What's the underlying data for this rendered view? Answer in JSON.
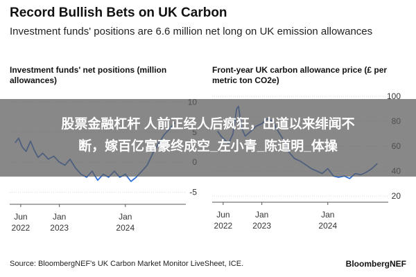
{
  "header": {
    "title": "Record Bullish Bets on UK Carbon",
    "subtitle": "Investment funds' positions are 6.6 million net long on UK emission allowances"
  },
  "chart_data": [
    {
      "type": "line",
      "title": "Investment funds' net positions (million allowances)",
      "ylim": [
        -7,
        12
      ],
      "yticks": [
        10,
        5,
        0,
        -5
      ],
      "xlim": [
        "2022-04-01",
        "2024-10-31"
      ],
      "xticks": [
        {
          "x": "2022-06-01",
          "line1": "Jun",
          "line2": "2022"
        },
        {
          "x": "2023-01-01",
          "line1": "Jan",
          "line2": "2023"
        },
        {
          "x": "2024-01-01",
          "line1": "Jan",
          "line2": "2024"
        }
      ],
      "series": [
        {
          "color": "#2f6fdc",
          "points": [
            [
              "2022-05-01",
              3.2
            ],
            [
              "2022-05-20",
              4.0
            ],
            [
              "2022-06-10",
              2.5
            ],
            [
              "2022-07-01",
              1.8
            ],
            [
              "2022-07-25",
              3.5
            ],
            [
              "2022-08-15",
              2.0
            ],
            [
              "2022-09-05",
              0.8
            ],
            [
              "2022-10-01",
              1.5
            ],
            [
              "2022-11-01",
              0.5
            ],
            [
              "2022-12-01",
              1.0
            ],
            [
              "2023-01-01",
              0.0
            ],
            [
              "2023-02-01",
              -0.5
            ],
            [
              "2023-03-01",
              0.5
            ],
            [
              "2023-04-01",
              -1.0
            ],
            [
              "2023-05-01",
              -2.0
            ],
            [
              "2023-06-01",
              -2.5
            ],
            [
              "2023-07-01",
              -1.5
            ],
            [
              "2023-08-01",
              -3.0
            ],
            [
              "2023-09-01",
              -2.0
            ],
            [
              "2023-10-01",
              -2.5
            ],
            [
              "2023-11-01",
              -1.5
            ],
            [
              "2023-12-01",
              -2.5
            ],
            [
              "2024-01-01",
              -2.0
            ],
            [
              "2024-02-01",
              -3.2
            ],
            [
              "2024-03-01",
              -2.5
            ],
            [
              "2024-04-01",
              -1.5
            ],
            [
              "2024-05-01",
              -0.5
            ],
            [
              "2024-06-01",
              1.5
            ],
            [
              "2024-07-01",
              3.0
            ],
            [
              "2024-08-01",
              4.5
            ],
            [
              "2024-09-01",
              5.5
            ],
            [
              "2024-10-01",
              6.6
            ]
          ]
        }
      ]
    },
    {
      "type": "line",
      "title": "Front-year UK carbon allowance price (£ per metric ton CO2e)",
      "ylim": [
        15,
        105
      ],
      "yticks": [
        100,
        80,
        60,
        40,
        20
      ],
      "xlim": [
        "2022-04-01",
        "2024-10-31"
      ],
      "xticks": [
        {
          "x": "2022-06-01",
          "line1": "Jun",
          "line2": "2022"
        },
        {
          "x": "2023-01-01",
          "line1": "Jan",
          "line2": "2023"
        },
        {
          "x": "2024-01-01",
          "line1": "Jan",
          "line2": "2024"
        }
      ],
      "series": [
        {
          "color": "#2f6fdc",
          "points": [
            [
              "2022-05-01",
              72
            ],
            [
              "2022-05-20",
              68
            ],
            [
              "2022-06-10",
              65
            ],
            [
              "2022-07-01",
              62
            ],
            [
              "2022-07-25",
              70
            ],
            [
              "2022-08-15",
              90
            ],
            [
              "2022-08-25",
              92
            ],
            [
              "2022-09-10",
              75
            ],
            [
              "2022-10-01",
              68
            ],
            [
              "2022-11-01",
              72
            ],
            [
              "2022-12-01",
              76
            ],
            [
              "2023-01-01",
              78
            ],
            [
              "2023-02-01",
              82
            ],
            [
              "2023-03-01",
              80
            ],
            [
              "2023-04-01",
              72
            ],
            [
              "2023-05-01",
              65
            ],
            [
              "2023-06-01",
              55
            ],
            [
              "2023-07-01",
              50
            ],
            [
              "2023-08-01",
              48
            ],
            [
              "2023-09-01",
              45
            ],
            [
              "2023-10-01",
              42
            ],
            [
              "2023-11-01",
              40
            ],
            [
              "2023-12-01",
              38
            ],
            [
              "2024-01-01",
              42
            ],
            [
              "2024-02-01",
              36
            ],
            [
              "2024-03-01",
              35
            ],
            [
              "2024-04-01",
              36
            ],
            [
              "2024-05-01",
              34
            ],
            [
              "2024-06-01",
              38
            ],
            [
              "2024-07-01",
              37
            ],
            [
              "2024-08-01",
              39
            ],
            [
              "2024-09-01",
              42
            ],
            [
              "2024-10-01",
              46
            ]
          ]
        }
      ]
    }
  ],
  "overlay": {
    "line1": "股票金融杠杆 人前正经人后疯狂，出道以来绯闻不",
    "line2": "断，嫁百亿富豪终成空_左小青_陈道明_体操"
  },
  "footer": {
    "source": "Source: BloombergNEF's UK Carbon Market Monitor LiveSheet, ICE.",
    "brand": "BloombergNEF"
  }
}
